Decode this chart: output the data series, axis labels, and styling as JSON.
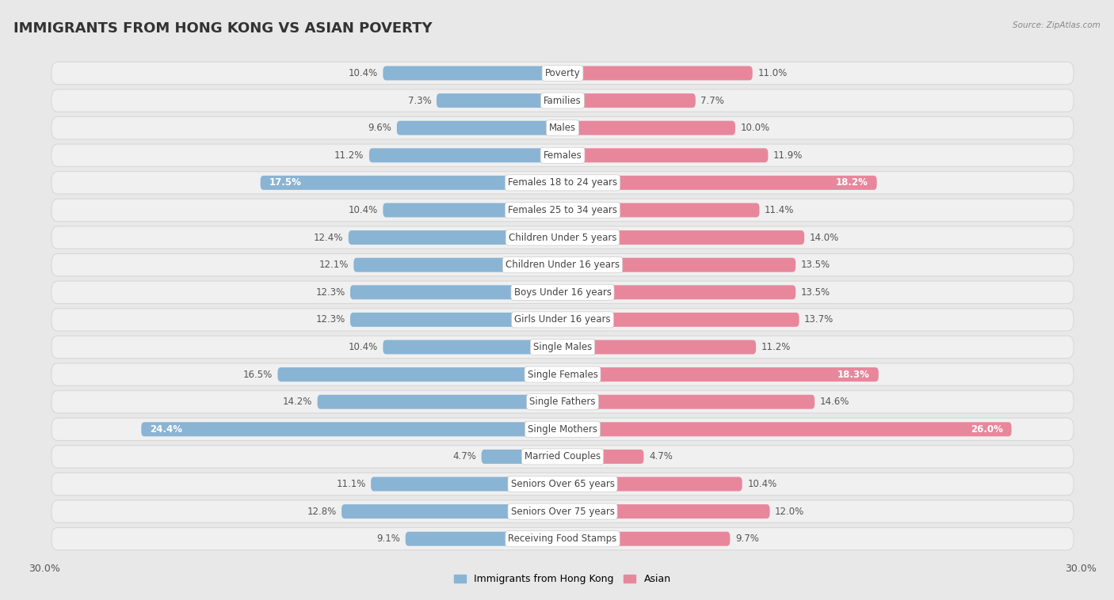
{
  "title": "IMMIGRANTS FROM HONG KONG VS ASIAN POVERTY",
  "source": "Source: ZipAtlas.com",
  "categories": [
    "Poverty",
    "Families",
    "Males",
    "Females",
    "Females 18 to 24 years",
    "Females 25 to 34 years",
    "Children Under 5 years",
    "Children Under 16 years",
    "Boys Under 16 years",
    "Girls Under 16 years",
    "Single Males",
    "Single Females",
    "Single Fathers",
    "Single Mothers",
    "Married Couples",
    "Seniors Over 65 years",
    "Seniors Over 75 years",
    "Receiving Food Stamps"
  ],
  "left_values": [
    10.4,
    7.3,
    9.6,
    11.2,
    17.5,
    10.4,
    12.4,
    12.1,
    12.3,
    12.3,
    10.4,
    16.5,
    14.2,
    24.4,
    4.7,
    11.1,
    12.8,
    9.1
  ],
  "right_values": [
    11.0,
    7.7,
    10.0,
    11.9,
    18.2,
    11.4,
    14.0,
    13.5,
    13.5,
    13.7,
    11.2,
    18.3,
    14.6,
    26.0,
    4.7,
    10.4,
    12.0,
    9.7
  ],
  "left_color": "#8ab4d4",
  "right_color": "#e8879c",
  "bar_height": 0.52,
  "xlim": 30.0,
  "background_color": "#e8e8e8",
  "row_bg_color": "#f0f0f0",
  "row_border_color": "#d8d8d8",
  "title_fontsize": 13,
  "label_fontsize": 8.5,
  "value_fontsize": 8.5,
  "legend_label_left": "Immigrants from Hong Kong",
  "legend_label_right": "Asian",
  "axis_label_fontsize": 9,
  "white_text_threshold": 17.5
}
